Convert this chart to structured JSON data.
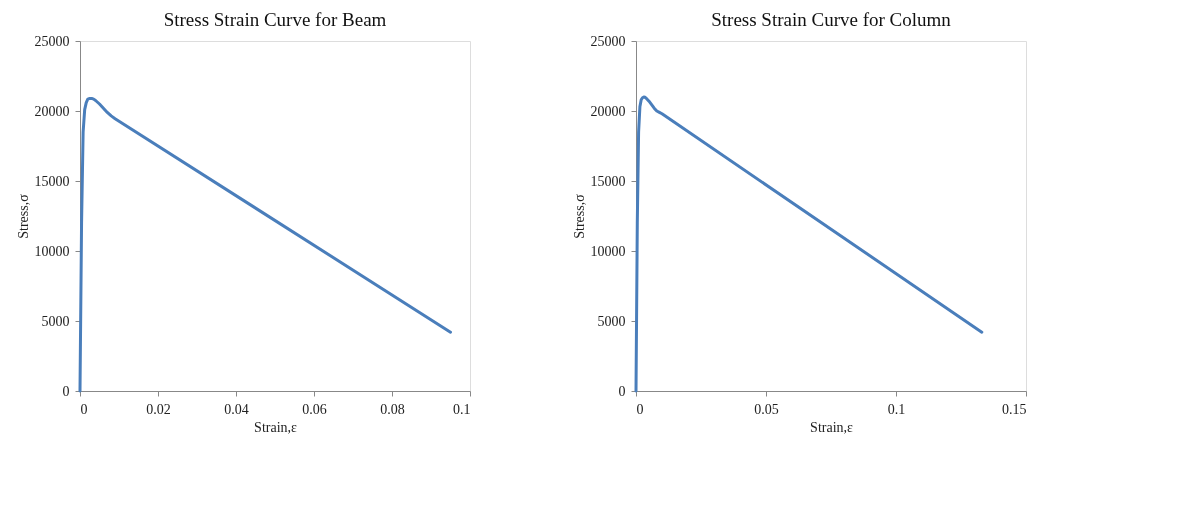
{
  "chart_data": [
    {
      "type": "line",
      "title": "Stress Strain Curve for Beam",
      "xlabel": "Strain,ε",
      "ylabel": "Stress,σ",
      "xlim": [
        0,
        0.1
      ],
      "xticks": [
        0,
        0.02,
        0.04,
        0.06,
        0.08,
        0.1
      ],
      "ylim": [
        0,
        25000
      ],
      "yticks": [
        0,
        5000,
        10000,
        15000,
        20000,
        25000
      ],
      "grid": false,
      "marker": "none",
      "line_style": "solid",
      "series": [
        {
          "color": "#4a7ebb",
          "x": [
            0,
            0.0004,
            0.0008,
            0.0012,
            0.0016,
            0.002,
            0.0025,
            0.003,
            0.0035,
            0.004,
            0.005,
            0.006,
            0.007,
            0.008,
            0.009,
            0.095
          ],
          "values": [
            0,
            12000,
            18500,
            20100,
            20600,
            20850,
            20900,
            20900,
            20850,
            20750,
            20500,
            20200,
            19900,
            19650,
            19450,
            4200
          ]
        }
      ]
    },
    {
      "type": "line",
      "title": "Stress Strain Curve for Column",
      "xlabel": "Strain,ε",
      "ylabel": "Stress,σ",
      "xlim": [
        0,
        0.15
      ],
      "xticks": [
        0,
        0.05,
        0.1,
        0.15
      ],
      "ylim": [
        0,
        25000
      ],
      "yticks": [
        0,
        5000,
        10000,
        15000,
        20000,
        25000
      ],
      "grid": false,
      "marker": "none",
      "line_style": "solid",
      "series": [
        {
          "color": "#4a7ebb",
          "x": [
            0,
            0.0005,
            0.001,
            0.0015,
            0.002,
            0.0025,
            0.003,
            0.0035,
            0.004,
            0.005,
            0.006,
            0.007,
            0.008,
            0.009,
            0.01,
            0.133
          ],
          "values": [
            0,
            12000,
            18500,
            20300,
            20800,
            20950,
            21000,
            20980,
            20900,
            20700,
            20450,
            20200,
            20000,
            19900,
            19800,
            4200
          ]
        }
      ]
    }
  ]
}
